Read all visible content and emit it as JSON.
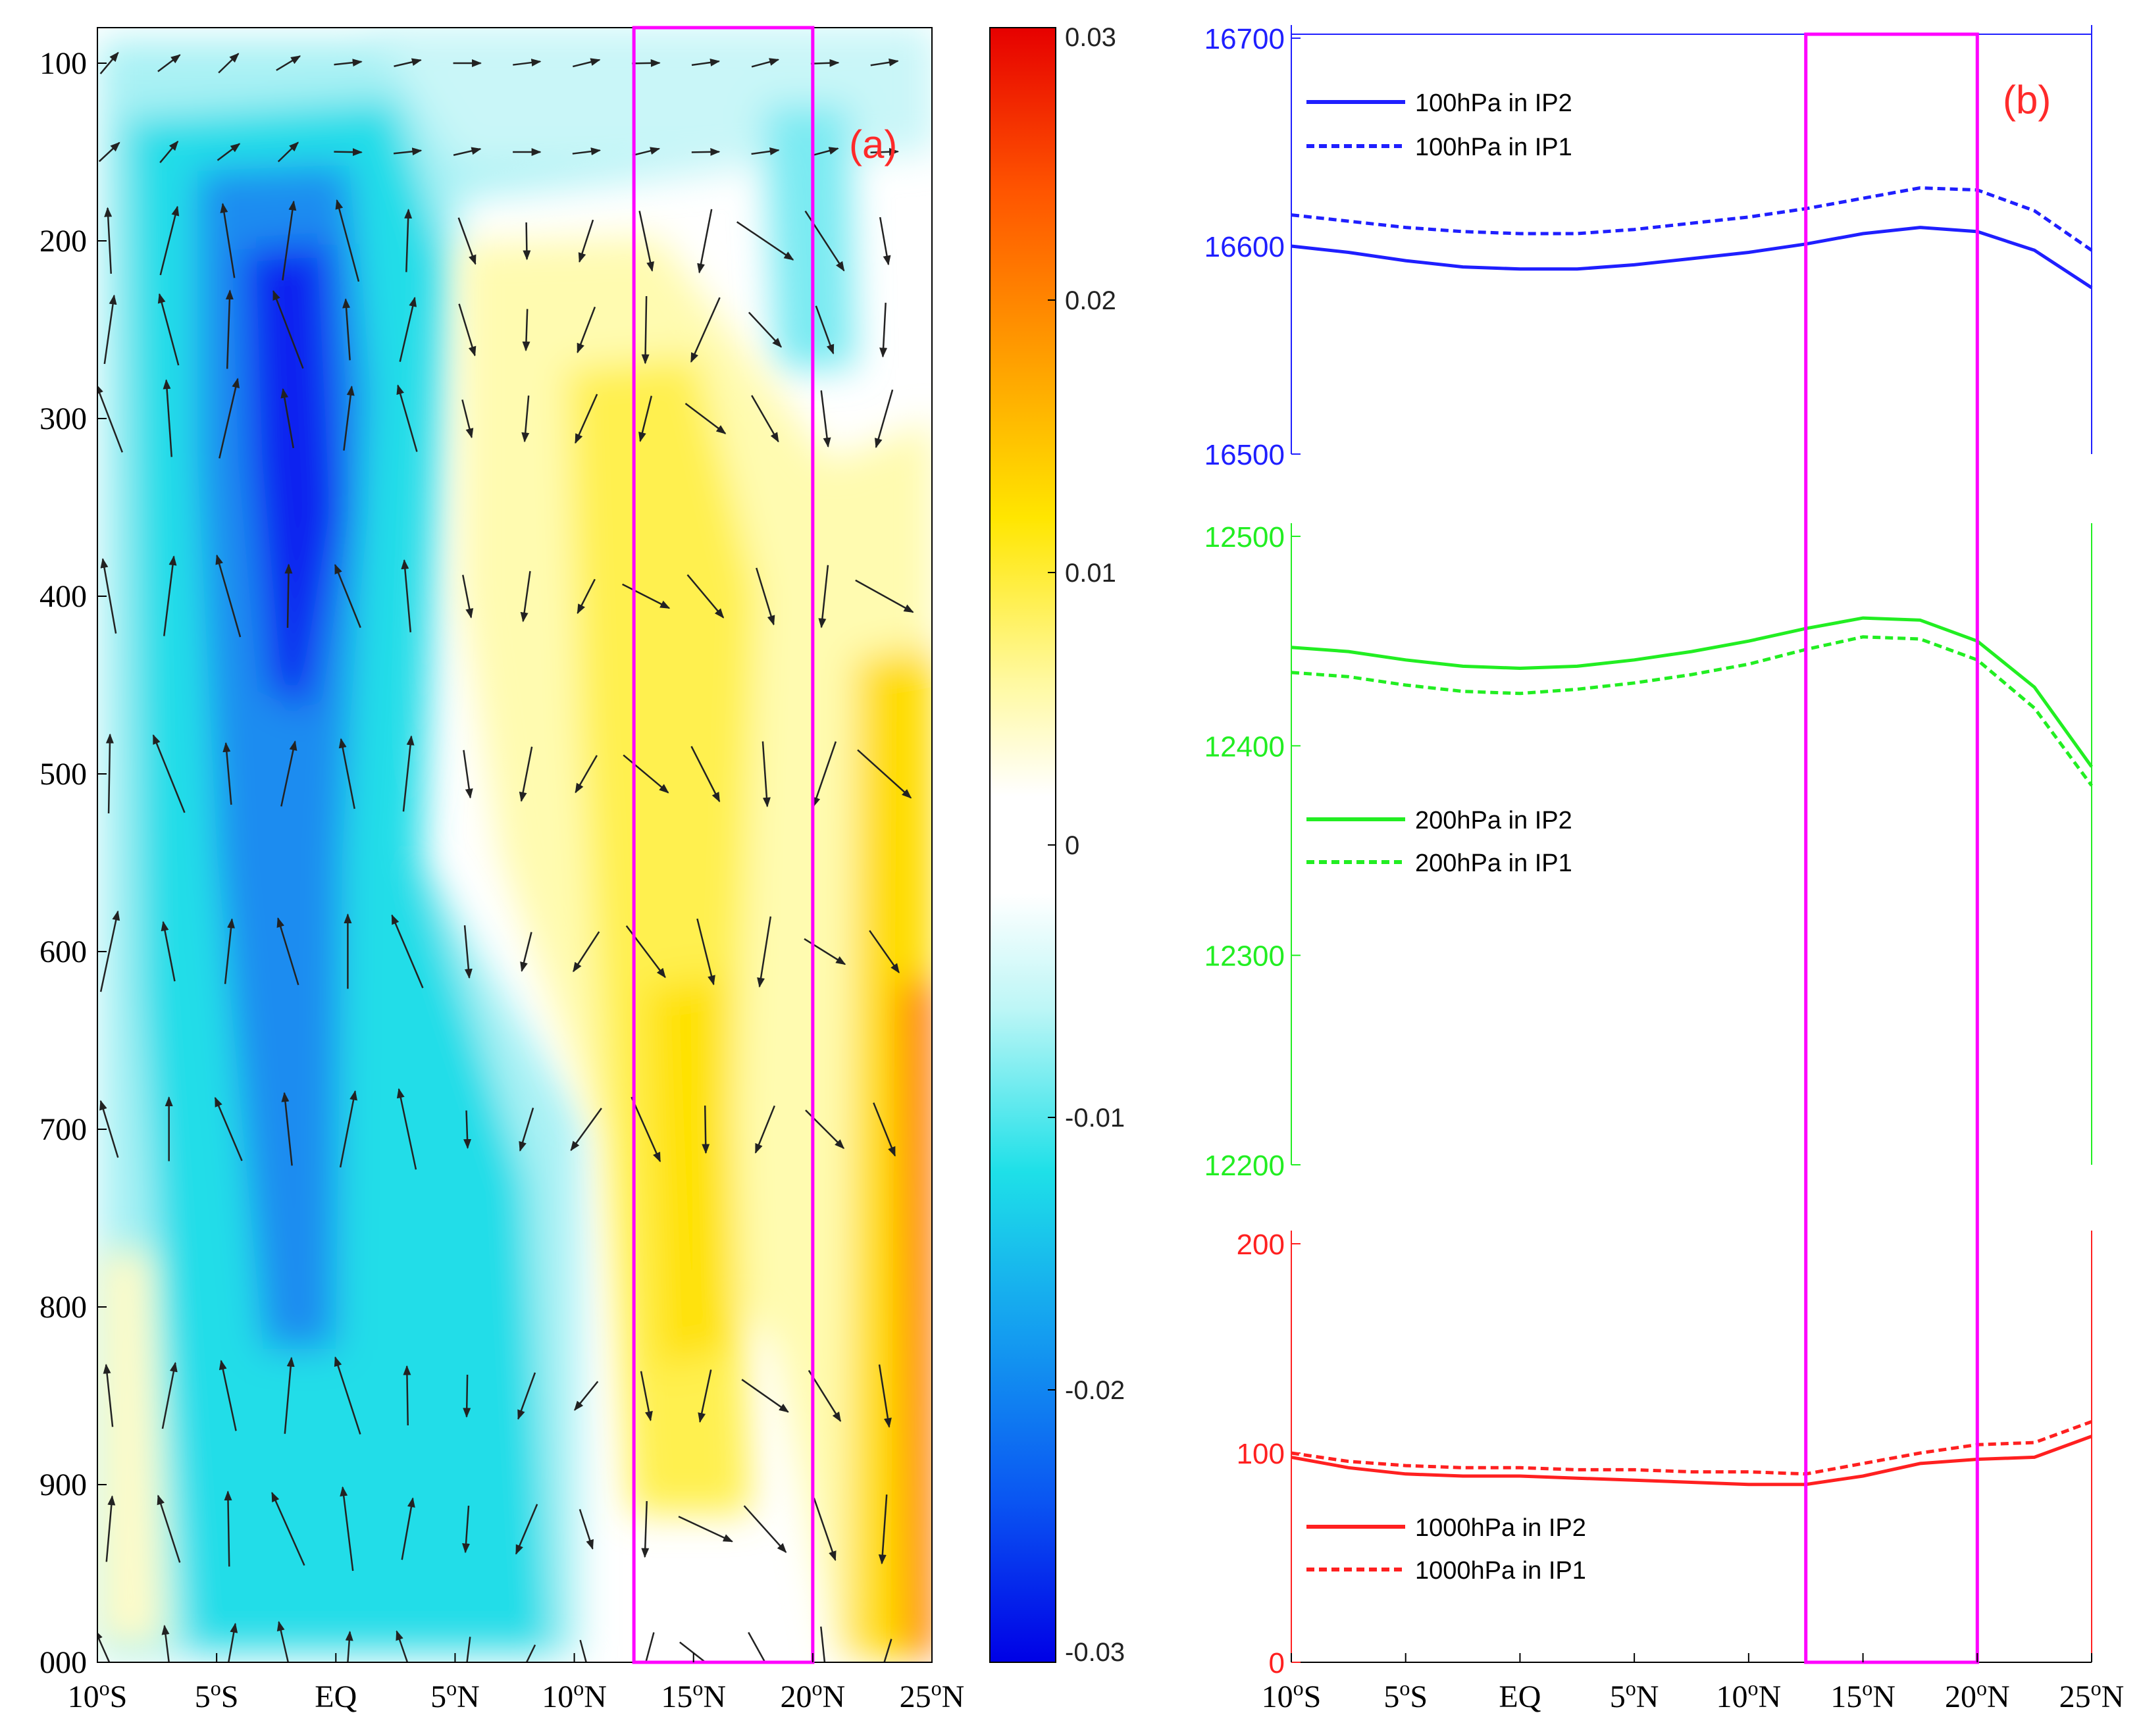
{
  "colors": {
    "blue": "#1f1fff",
    "green": "#22ee22",
    "red": "#ff2020",
    "magenta": "#ff00ff",
    "panel_label": "#ff2a2a"
  },
  "chart_data": [
    {
      "type": "heatmap",
      "title": "(a)",
      "xlabel": "",
      "ylabel": "",
      "x_tick_labels": [
        "10°S",
        "5°S",
        "EQ",
        "5°N",
        "10°N",
        "15°N",
        "20°N",
        "25°N"
      ],
      "x_values": [
        -10,
        -5,
        0,
        5,
        10,
        15,
        20,
        25
      ],
      "y_tick_labels": [
        "100",
        "200",
        "300",
        "400",
        "500",
        "600",
        "700",
        "800",
        "900",
        "000"
      ],
      "y_values": [
        100,
        200,
        300,
        400,
        500,
        600,
        700,
        800,
        900,
        1000
      ],
      "xlim": [
        -10,
        25
      ],
      "ylim": [
        1000,
        80
      ],
      "colorbar": {
        "range": [
          -0.03,
          0.03
        ],
        "tick_labels": [
          "0.03",
          "0.02",
          "0.01",
          "0",
          "-0.01",
          "-0.02",
          "-0.03"
        ],
        "tick_values": [
          0.03,
          0.02,
          0.01,
          0,
          -0.01,
          -0.02,
          -0.03
        ]
      },
      "highlight_box": {
        "x_range": [
          12.5,
          20
        ],
        "color": "#ff00ff"
      },
      "field_description_levels": [
        100,
        200,
        300,
        400,
        500,
        600,
        700,
        800,
        900,
        1000
      ]
    },
    {
      "type": "line",
      "title": "(b)",
      "x_tick_labels": [
        "10°S",
        "5°S",
        "EQ",
        "5°N",
        "10°N",
        "15°N",
        "20°N",
        "25°N"
      ],
      "x": [
        -10,
        -7.5,
        -5,
        -2.5,
        0,
        2.5,
        5,
        7.5,
        10,
        12.5,
        15,
        17.5,
        20,
        22.5,
        25
      ],
      "highlight_box": {
        "x_range": [
          12.5,
          20
        ],
        "color": "#ff00ff"
      },
      "segments": [
        {
          "name": "100hPa",
          "color": "#1f1fff",
          "ylim": [
            16500,
            16700
          ],
          "y_tick_labels": [
            "16700",
            "16600",
            "16500"
          ],
          "y_ticks": [
            16700,
            16600,
            16500
          ],
          "series": [
            {
              "name": "100hPa in IP2",
              "style": "solid",
              "values": [
                16600,
                16597,
                16593,
                16590,
                16589,
                16589,
                16591,
                16594,
                16597,
                16601,
                16606,
                16609,
                16607,
                16598,
                16580
              ]
            },
            {
              "name": "100hPa in IP1",
              "style": "dashed",
              "values": [
                16615,
                16612,
                16609,
                16607,
                16606,
                16606,
                16608,
                16611,
                16614,
                16618,
                16623,
                16628,
                16627,
                16617,
                16598
              ]
            }
          ]
        },
        {
          "name": "200hPa",
          "color": "#22ee22",
          "ylim": [
            12200,
            12500
          ],
          "y_tick_labels": [
            "12500",
            "12400",
            "12300",
            "12200"
          ],
          "y_ticks": [
            12500,
            12400,
            12300,
            12200
          ],
          "series": [
            {
              "name": "200hPa in IP2",
              "style": "solid",
              "values": [
                12447,
                12445,
                12441,
                12438,
                12437,
                12438,
                12441,
                12445,
                12450,
                12456,
                12461,
                12460,
                12450,
                12428,
                12390
              ]
            },
            {
              "name": "200hPa in IP1",
              "style": "dashed",
              "values": [
                12435,
                12433,
                12429,
                12426,
                12425,
                12427,
                12430,
                12434,
                12439,
                12446,
                12452,
                12451,
                12441,
                12418,
                12381
              ]
            }
          ]
        },
        {
          "name": "1000hPa",
          "color": "#ff2020",
          "ylim": [
            0,
            200
          ],
          "y_tick_labels": [
            "200",
            "100",
            "0"
          ],
          "y_ticks": [
            200,
            100,
            0
          ],
          "series": [
            {
              "name": "1000hPa in IP2",
              "style": "solid",
              "values": [
                98,
                93,
                90,
                89,
                89,
                88,
                87,
                86,
                85,
                85,
                89,
                95,
                97,
                98,
                108
              ]
            },
            {
              "name": "1000hPa in IP1",
              "style": "dashed",
              "values": [
                100,
                96,
                94,
                93,
                93,
                92,
                92,
                91,
                91,
                90,
                95,
                100,
                104,
                105,
                115
              ]
            }
          ]
        }
      ]
    }
  ]
}
